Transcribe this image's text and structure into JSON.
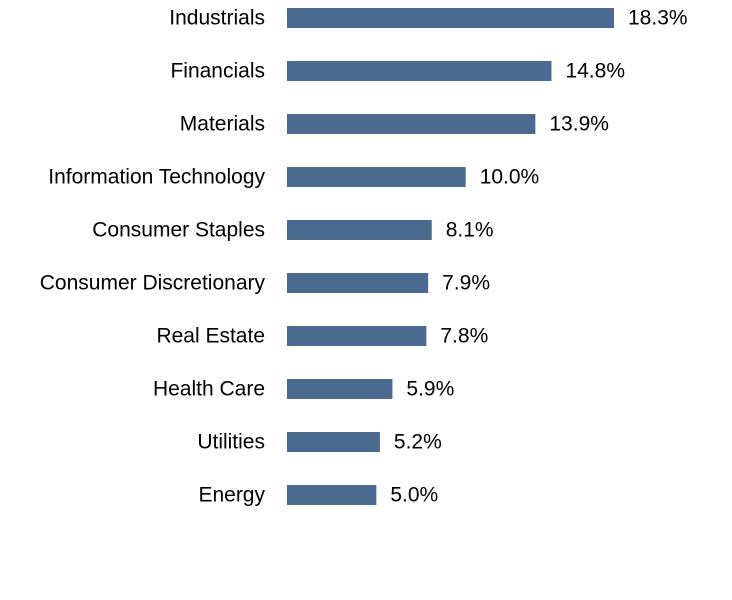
{
  "chart_data": {
    "type": "bar",
    "orientation": "horizontal",
    "title": "",
    "xlabel": "",
    "ylabel": "",
    "grid": false,
    "legend": "none",
    "categories": [
      "Industrials",
      "Financials",
      "Materials",
      "Information Technology",
      "Consumer Staples",
      "Consumer Discretionary",
      "Real Estate",
      "Health Care",
      "Utilities",
      "Energy"
    ],
    "values": [
      18.3,
      14.8,
      13.9,
      10.0,
      8.1,
      7.9,
      7.8,
      5.9,
      5.2,
      5.0
    ],
    "value_labels": [
      "18.3%",
      "14.8%",
      "13.9%",
      "10.0%",
      "8.1%",
      "7.9%",
      "7.8%",
      "5.9%",
      "5.2%",
      "5.0%"
    ],
    "xlim": [
      0,
      18.3
    ],
    "bar_color": "#4a6b8f"
  }
}
